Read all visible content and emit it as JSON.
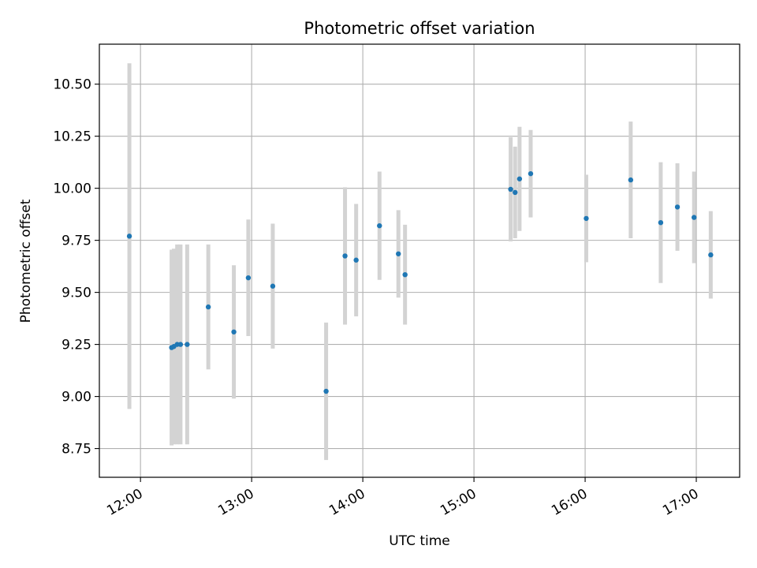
{
  "chart_data": {
    "type": "scatter",
    "title": "Photometric offset variation",
    "xlabel": "UTC time",
    "ylabel": "Photometric offset",
    "xlim": [
      11.63,
      17.39
    ],
    "ylim": [
      8.612,
      10.692
    ],
    "xticks": [
      12,
      13,
      14,
      15,
      16,
      17
    ],
    "xtick_labels": [
      "12:00",
      "13:00",
      "14:00",
      "15:00",
      "16:00",
      "17:00"
    ],
    "yticks": [
      8.75,
      9.0,
      9.25,
      9.5,
      9.75,
      10.0,
      10.25,
      10.5
    ],
    "ytick_labels": [
      "8.75",
      "9.00",
      "9.25",
      "9.50",
      "9.75",
      "10.00",
      "10.25",
      "10.50"
    ],
    "grid": true,
    "marker_color": "#1f77b4",
    "errorbar_color": "#d3d3d3",
    "points": [
      {
        "x": 11.9,
        "y": 9.77,
        "err": 0.83
      },
      {
        "x": 12.28,
        "y": 9.235,
        "err": 0.47
      },
      {
        "x": 12.3,
        "y": 9.24,
        "err": 0.47
      },
      {
        "x": 12.33,
        "y": 9.25,
        "err": 0.48
      },
      {
        "x": 12.36,
        "y": 9.25,
        "err": 0.48
      },
      {
        "x": 12.42,
        "y": 9.25,
        "err": 0.48
      },
      {
        "x": 12.61,
        "y": 9.43,
        "err": 0.3
      },
      {
        "x": 12.84,
        "y": 9.31,
        "err": 0.32
      },
      {
        "x": 12.97,
        "y": 9.57,
        "err": 0.28
      },
      {
        "x": 13.19,
        "y": 9.53,
        "err": 0.3
      },
      {
        "x": 13.67,
        "y": 9.025,
        "err": 0.33
      },
      {
        "x": 13.84,
        "y": 9.675,
        "err": 0.33
      },
      {
        "x": 13.94,
        "y": 9.655,
        "err": 0.27
      },
      {
        "x": 14.15,
        "y": 9.82,
        "err": 0.26
      },
      {
        "x": 14.32,
        "y": 9.685,
        "err": 0.21
      },
      {
        "x": 14.38,
        "y": 9.585,
        "err": 0.24
      },
      {
        "x": 15.33,
        "y": 9.995,
        "err": 0.25
      },
      {
        "x": 15.37,
        "y": 9.98,
        "err": 0.22
      },
      {
        "x": 15.41,
        "y": 10.045,
        "err": 0.25
      },
      {
        "x": 15.51,
        "y": 10.07,
        "err": 0.21
      },
      {
        "x": 16.01,
        "y": 9.855,
        "err": 0.21
      },
      {
        "x": 16.41,
        "y": 10.04,
        "err": 0.28
      },
      {
        "x": 16.68,
        "y": 9.835,
        "err": 0.29
      },
      {
        "x": 16.83,
        "y": 9.91,
        "err": 0.21
      },
      {
        "x": 16.98,
        "y": 9.86,
        "err": 0.22
      },
      {
        "x": 17.13,
        "y": 9.68,
        "err": 0.21
      }
    ]
  }
}
